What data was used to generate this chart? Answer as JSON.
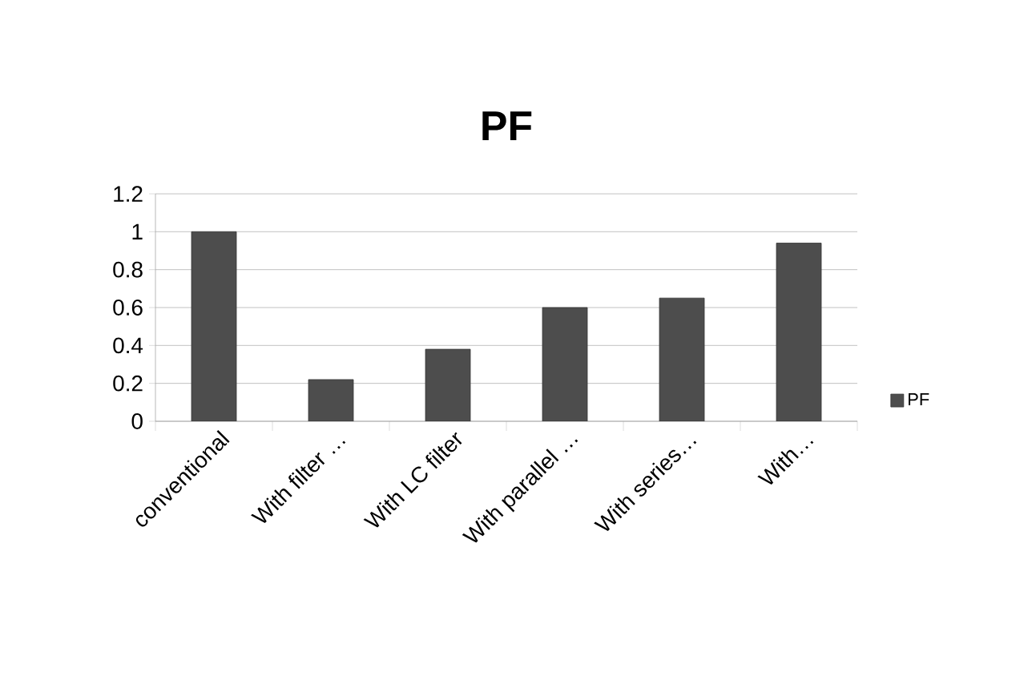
{
  "chart_data": {
    "type": "bar",
    "title": "PF",
    "categories": [
      "conventional",
      "With filter …",
      "With LC filter",
      "With parallel …",
      "With series…",
      "With…"
    ],
    "series": [
      {
        "name": "PF",
        "color": "#4d4d4d",
        "values": [
          1.0,
          0.22,
          0.38,
          0.6,
          0.65,
          0.94
        ]
      }
    ],
    "ylim": [
      0,
      1.2
    ],
    "yticks": [
      0,
      0.2,
      0.4,
      0.6,
      0.8,
      1,
      1.2
    ],
    "grid": "y",
    "legend": "right"
  }
}
